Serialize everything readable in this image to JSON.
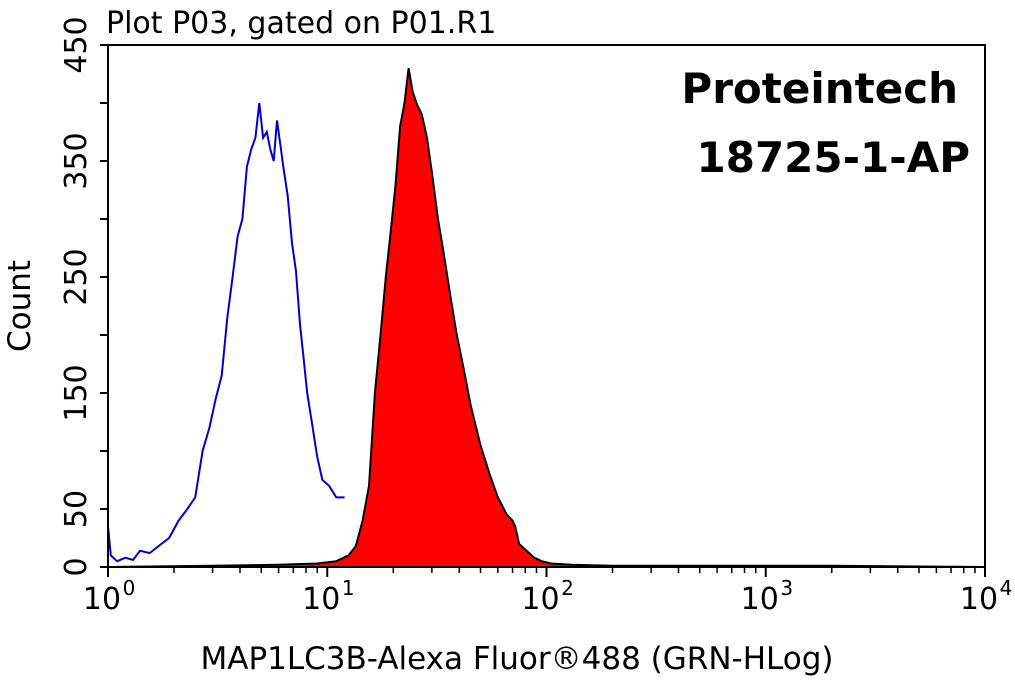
{
  "chart_data": {
    "type": "area",
    "title": "Plot P03, gated on P01.R1",
    "xlabel": "MAP1LC3B-Alexa Fluor®488 (GRN-HLog)",
    "ylabel": "Count",
    "xscale": "log",
    "xlim": [
      1,
      10000
    ],
    "ylim": [
      0,
      450
    ],
    "xticks": [
      {
        "value": 1,
        "base": "10",
        "exp": "0"
      },
      {
        "value": 10,
        "base": "10",
        "exp": "1"
      },
      {
        "value": 100,
        "base": "10",
        "exp": "2"
      },
      {
        "value": 1000,
        "base": "10",
        "exp": "3"
      },
      {
        "value": 10000,
        "base": "10",
        "exp": "4"
      }
    ],
    "yticks": [
      0,
      50,
      100,
      150,
      200,
      250,
      300,
      350,
      400,
      450
    ],
    "ytick_labels": [
      "0",
      "50",
      "",
      "150",
      "",
      "250",
      "",
      "350",
      "",
      "450"
    ],
    "annotations": [
      "Proteintech",
      "18725-1-AP"
    ],
    "series": [
      {
        "role": "control",
        "style": "outline",
        "color": "#0000cc",
        "points": [
          [
            1.0,
            35
          ],
          [
            1.03,
            10
          ],
          [
            1.1,
            5
          ],
          [
            1.2,
            8
          ],
          [
            1.3,
            6
          ],
          [
            1.4,
            14
          ],
          [
            1.55,
            12
          ],
          [
            1.7,
            18
          ],
          [
            1.9,
            25
          ],
          [
            2.1,
            40
          ],
          [
            2.3,
            50
          ],
          [
            2.5,
            60
          ],
          [
            2.7,
            100
          ],
          [
            2.9,
            120
          ],
          [
            3.1,
            145
          ],
          [
            3.3,
            165
          ],
          [
            3.5,
            215
          ],
          [
            3.7,
            250
          ],
          [
            3.9,
            285
          ],
          [
            4.1,
            300
          ],
          [
            4.3,
            345
          ],
          [
            4.5,
            360
          ],
          [
            4.7,
            370
          ],
          [
            4.9,
            400
          ],
          [
            5.1,
            370
          ],
          [
            5.3,
            375
          ],
          [
            5.5,
            360
          ],
          [
            5.7,
            350
          ],
          [
            5.9,
            385
          ],
          [
            6.1,
            365
          ],
          [
            6.3,
            345
          ],
          [
            6.6,
            320
          ],
          [
            6.9,
            280
          ],
          [
            7.2,
            255
          ],
          [
            7.5,
            210
          ],
          [
            7.8,
            180
          ],
          [
            8.1,
            150
          ],
          [
            8.5,
            125
          ],
          [
            9.0,
            95
          ],
          [
            9.5,
            75
          ],
          [
            10.2,
            70
          ],
          [
            11.0,
            60
          ],
          [
            12.0,
            60
          ]
        ]
      },
      {
        "role": "sample",
        "style": "filled",
        "color": "#ff0000",
        "points": [
          [
            1.0,
            0
          ],
          [
            3.0,
            1
          ],
          [
            6.0,
            2
          ],
          [
            9.0,
            3
          ],
          [
            11.0,
            5
          ],
          [
            12.5,
            10
          ],
          [
            13.5,
            18
          ],
          [
            14.5,
            40
          ],
          [
            15.5,
            70
          ],
          [
            16.5,
            150
          ],
          [
            17.5,
            200
          ],
          [
            18.5,
            250
          ],
          [
            19.5,
            290
          ],
          [
            20.5,
            330
          ],
          [
            21.5,
            380
          ],
          [
            22.5,
            400
          ],
          [
            23.5,
            430
          ],
          [
            24.5,
            410
          ],
          [
            25.5,
            400
          ],
          [
            27.0,
            390
          ],
          [
            28.5,
            370
          ],
          [
            30.0,
            340
          ],
          [
            32.0,
            300
          ],
          [
            34.0,
            270
          ],
          [
            36.0,
            240
          ],
          [
            39.0,
            200
          ],
          [
            42.0,
            170
          ],
          [
            45.0,
            140
          ],
          [
            50.0,
            105
          ],
          [
            55.0,
            80
          ],
          [
            60.0,
            60
          ],
          [
            66.0,
            45
          ],
          [
            70.0,
            40
          ],
          [
            72.0,
            35
          ],
          [
            75.0,
            20
          ],
          [
            80.0,
            15
          ],
          [
            88.0,
            8
          ],
          [
            95.0,
            5
          ],
          [
            105.0,
            3
          ],
          [
            130.0,
            2
          ],
          [
            200.0,
            1
          ],
          [
            500.0,
            1
          ],
          [
            2000.0,
            1
          ],
          [
            10000.0,
            0
          ]
        ]
      }
    ]
  }
}
